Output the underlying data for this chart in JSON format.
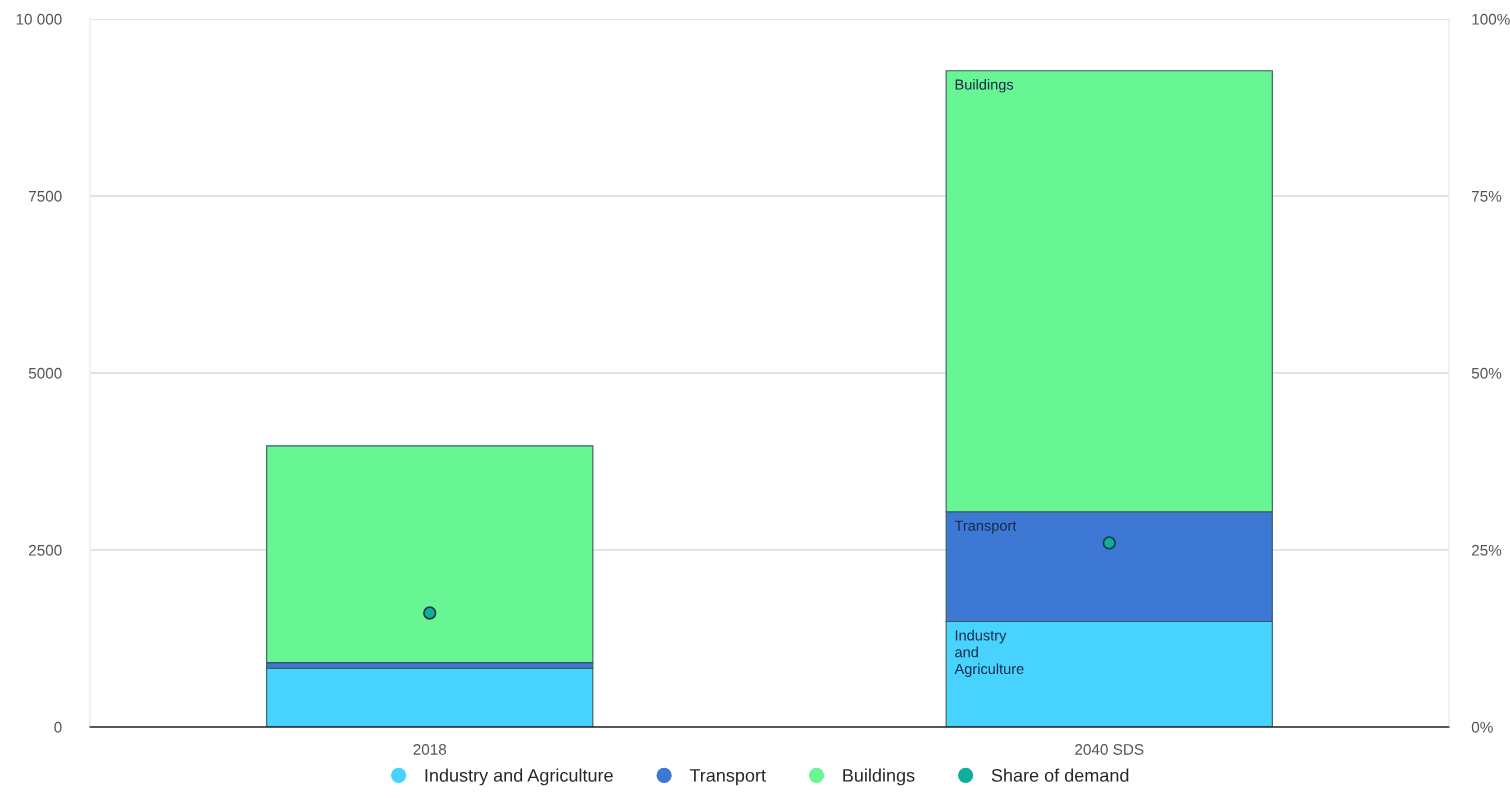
{
  "chart_data": {
    "type": "bar",
    "stacked": true,
    "categories": [
      "2018",
      "2040 SDS"
    ],
    "series": [
      {
        "name": "Industry and Agriculture",
        "color": "#48d3ff",
        "values": [
          830,
          1490
        ]
      },
      {
        "name": "Transport",
        "color": "#3c78d4",
        "values": [
          80,
          1550
        ]
      },
      {
        "name": "Buildings",
        "color": "#68f593",
        "values": [
          3060,
          6230
        ]
      },
      {
        "name": "Share of demand",
        "type": "scatter",
        "axis": "y2",
        "color": "#0fae9a",
        "values": [
          16.1,
          26.0
        ]
      }
    ],
    "ylim": [
      0,
      10000
    ],
    "yticks": [
      0,
      2500,
      5000,
      7500,
      {
        "value": 10000,
        "label": "10 000"
      }
    ],
    "y2lim": [
      0,
      100
    ],
    "y2ticks": [
      {
        "value": 0,
        "label": "0%"
      },
      {
        "value": 25,
        "label": "25%"
      },
      {
        "value": 50,
        "label": "50%"
      },
      {
        "value": 75,
        "label": "75%"
      },
      {
        "value": 100,
        "label": "100%"
      }
    ],
    "grid": "y",
    "legend": "bottom",
    "marker": "circle",
    "annotations": [
      "Buildings",
      "Transport",
      "Industry\nand\nAgriculture"
    ]
  }
}
